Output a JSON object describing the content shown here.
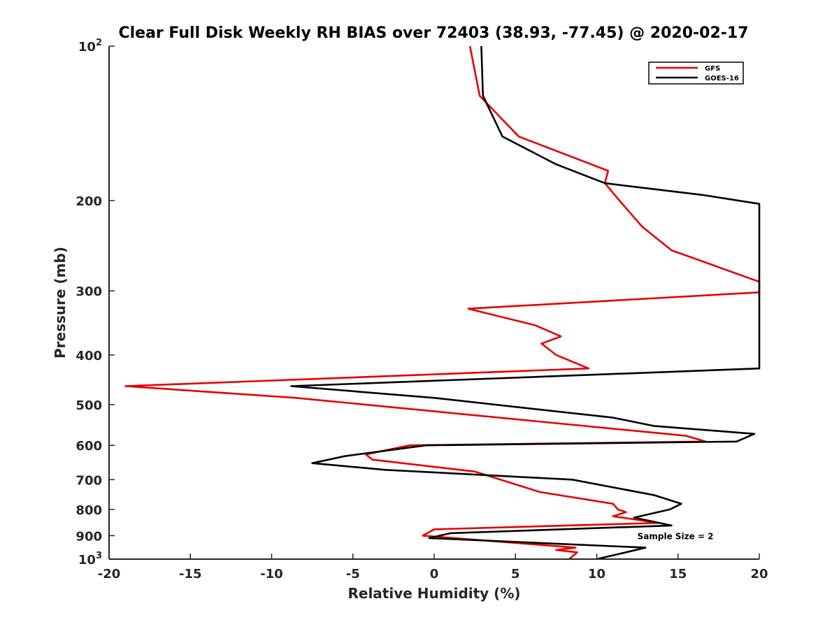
{
  "chart_data": {
    "type": "line",
    "title": "Clear Full Disk Weekly RH BIAS over 72403 (38.93, -77.45) @ 2020-02-17",
    "xlabel": "Relative Humidity (%)",
    "ylabel": "Pressure (mb)",
    "xlim": [
      -20,
      20
    ],
    "ylim": [
      100,
      1000
    ],
    "yscale": "log",
    "y_reversed": true,
    "grid": false,
    "legend_position": "top-right",
    "x_ticks": [
      -20,
      -15,
      -10,
      -5,
      0,
      5,
      10,
      15,
      20
    ],
    "x_tick_labels": [
      "-20",
      "-15",
      "-10",
      "-5",
      "0",
      "5",
      "10",
      "15",
      "20"
    ],
    "y_ticks": [
      100,
      200,
      300,
      400,
      500,
      600,
      700,
      800,
      900,
      1000
    ],
    "y_tick_labels": [
      {
        "base": "10",
        "exp": "2"
      },
      {
        "base": "200",
        "exp": ""
      },
      {
        "base": "300",
        "exp": ""
      },
      {
        "base": "400",
        "exp": ""
      },
      {
        "base": "500",
        "exp": ""
      },
      {
        "base": "600",
        "exp": ""
      },
      {
        "base": "700",
        "exp": ""
      },
      {
        "base": "800",
        "exp": ""
      },
      {
        "base": "900",
        "exp": ""
      },
      {
        "base": "10",
        "exp": "3"
      }
    ],
    "series": [
      {
        "name": "GFS",
        "color": "#e60000",
        "points": [
          {
            "x": 2.2,
            "p": 100
          },
          {
            "x": 2.8,
            "p": 125
          },
          {
            "x": 5.2,
            "p": 150
          },
          {
            "x": 10.7,
            "p": 175
          },
          {
            "x": 10.5,
            "p": 185
          },
          {
            "x": 11.4,
            "p": 200
          },
          {
            "x": 12.8,
            "p": 225
          },
          {
            "x": 14.6,
            "p": 250
          },
          {
            "x": 20,
            "p": 288
          },
          {
            "x": 20,
            "p": 302
          },
          {
            "x": 2.1,
            "p": 325
          },
          {
            "x": 6.2,
            "p": 350
          },
          {
            "x": 7.8,
            "p": 368
          },
          {
            "x": 6.6,
            "p": 380
          },
          {
            "x": 7.5,
            "p": 400
          },
          {
            "x": 9.5,
            "p": 425
          },
          {
            "x": -19,
            "p": 460
          },
          {
            "x": -8.5,
            "p": 485
          },
          {
            "x": 15.5,
            "p": 575
          },
          {
            "x": 16.7,
            "p": 590
          },
          {
            "x": -1.5,
            "p": 600
          },
          {
            "x": -4.2,
            "p": 625
          },
          {
            "x": -3.8,
            "p": 640
          },
          {
            "x": 2.5,
            "p": 675
          },
          {
            "x": 6.5,
            "p": 740
          },
          {
            "x": 11,
            "p": 780
          },
          {
            "x": 11.3,
            "p": 800
          },
          {
            "x": 11.8,
            "p": 810
          },
          {
            "x": 11,
            "p": 825
          },
          {
            "x": 13.8,
            "p": 850
          },
          {
            "x": 0,
            "p": 875
          },
          {
            "x": -0.7,
            "p": 900
          },
          {
            "x": 8.7,
            "p": 950
          },
          {
            "x": 7.5,
            "p": 960
          },
          {
            "x": 8.8,
            "p": 970
          },
          {
            "x": 8.3,
            "p": 1000
          }
        ]
      },
      {
        "name": "GOES-16",
        "color": "#000000",
        "points": [
          {
            "x": 2.9,
            "p": 100
          },
          {
            "x": 3.0,
            "p": 125
          },
          {
            "x": 4.2,
            "p": 150
          },
          {
            "x": 7.5,
            "p": 170
          },
          {
            "x": 10.5,
            "p": 185
          },
          {
            "x": 13.5,
            "p": 190
          },
          {
            "x": 16.5,
            "p": 195
          },
          {
            "x": 20,
            "p": 203
          },
          {
            "x": 20,
            "p": 425
          },
          {
            "x": -8.8,
            "p": 460
          },
          {
            "x": 0,
            "p": 485
          },
          {
            "x": 11,
            "p": 530
          },
          {
            "x": 13.5,
            "p": 550
          },
          {
            "x": 19.7,
            "p": 570
          },
          {
            "x": 18.6,
            "p": 590
          },
          {
            "x": -0.5,
            "p": 600
          },
          {
            "x": -5.5,
            "p": 630
          },
          {
            "x": -7.5,
            "p": 650
          },
          {
            "x": -3.0,
            "p": 670
          },
          {
            "x": 8.5,
            "p": 700
          },
          {
            "x": 13.5,
            "p": 750
          },
          {
            "x": 15.2,
            "p": 780
          },
          {
            "x": 14.5,
            "p": 800
          },
          {
            "x": 12.3,
            "p": 830
          },
          {
            "x": 14.6,
            "p": 860
          },
          {
            "x": 1.0,
            "p": 890
          },
          {
            "x": -0.3,
            "p": 910
          },
          {
            "x": 6.5,
            "p": 930
          },
          {
            "x": 13,
            "p": 950
          },
          {
            "x": 11.5,
            "p": 975
          },
          {
            "x": 10,
            "p": 1000
          }
        ]
      }
    ],
    "annotations": [
      {
        "text": "Sample Size = 2",
        "x": 12.5,
        "p": 900
      }
    ]
  }
}
